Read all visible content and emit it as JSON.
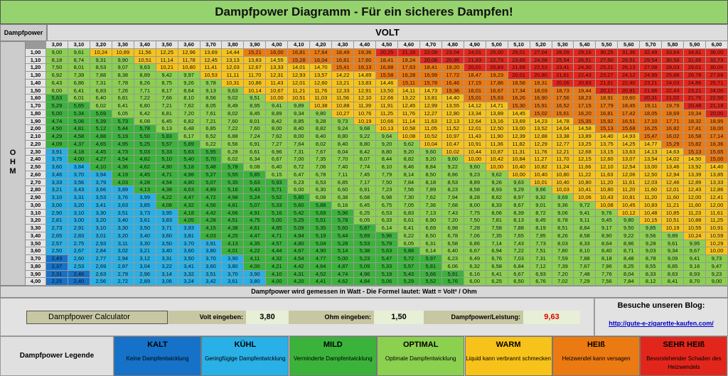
{
  "title": "Dampfpower Diagramm - Für ein sicheres Dampfen!",
  "header": {
    "power_label": "Dampfpower",
    "volt_label": "VOLT",
    "ohm_label": "OHM"
  },
  "volts": [
    "3,00",
    "3,10",
    "3,20",
    "3,30",
    "3,40",
    "3,50",
    "3,60",
    "3,70",
    "3,80",
    "3,90",
    "4,00",
    "4,10",
    "4,20",
    "4,30",
    "4,40",
    "4,50",
    "4,60",
    "4,70",
    "4,80",
    "4,90",
    "5,00",
    "5,10",
    "5,20",
    "5,30",
    "5,40",
    "5,50",
    "5,60",
    "5,70",
    "5,80",
    "5,90",
    "6,00"
  ],
  "ohms": [
    "1,00",
    "1,10",
    "1,20",
    "1,30",
    "1,40",
    "1,50",
    "1,60",
    "1,70",
    "1,80",
    "1,90",
    "2,00",
    "2,10",
    "2,20",
    "2,30",
    "2,40",
    "2,50",
    "2,60",
    "2,70",
    "2,80",
    "2,90",
    "3,00",
    "3,10",
    "3,20",
    "3,30",
    "3,40",
    "3,50",
    "3,60",
    "3,70",
    "3,80",
    "3,90",
    "4,00"
  ],
  "formula_text": "Dampfpower wird gemessen in Watt - Die Formel lautet: Watt = Volt² / Ohm",
  "calculator": {
    "name": "Dampfpower Calculator",
    "volt_label": "Volt eingeben:",
    "volt_value": "3,80",
    "ohm_label": "Ohm eingeben:",
    "ohm_value": "1,50",
    "power_label": "Dampfpower/Leistung:",
    "power_value": "9,63"
  },
  "blog": {
    "title": "Besuche unseren Blog:",
    "link": "http://gute-e-zigarette-kaufen.com/"
  },
  "legend": {
    "label": "Dampfpower Legende",
    "items": [
      {
        "title": "KALT",
        "desc": "Keine Dampfentwicklung",
        "color": "#1572c8"
      },
      {
        "title": "KÜHL",
        "desc": "Geringfügige Dampfentwicklung",
        "color": "#29b0e6"
      },
      {
        "title": "MILD",
        "desc": "Verminderte Dampfentwicklung",
        "color": "#3bb33b"
      },
      {
        "title": "OPTIMAL",
        "desc": "Optimale Dampfentwicklung",
        "color": "#8bd04f"
      },
      {
        "title": "WARM",
        "desc": "Liquid kann verbrannt schmecken",
        "color": "#f7c31a"
      },
      {
        "title": "HEIß",
        "desc": "Heizwendel kann versagen",
        "color": "#ec7a12"
      },
      {
        "title": "SEHR HEIß",
        "desc": "Bevorstehender Schaden des Heizwendels",
        "color": "#e3261b"
      }
    ]
  }
}
